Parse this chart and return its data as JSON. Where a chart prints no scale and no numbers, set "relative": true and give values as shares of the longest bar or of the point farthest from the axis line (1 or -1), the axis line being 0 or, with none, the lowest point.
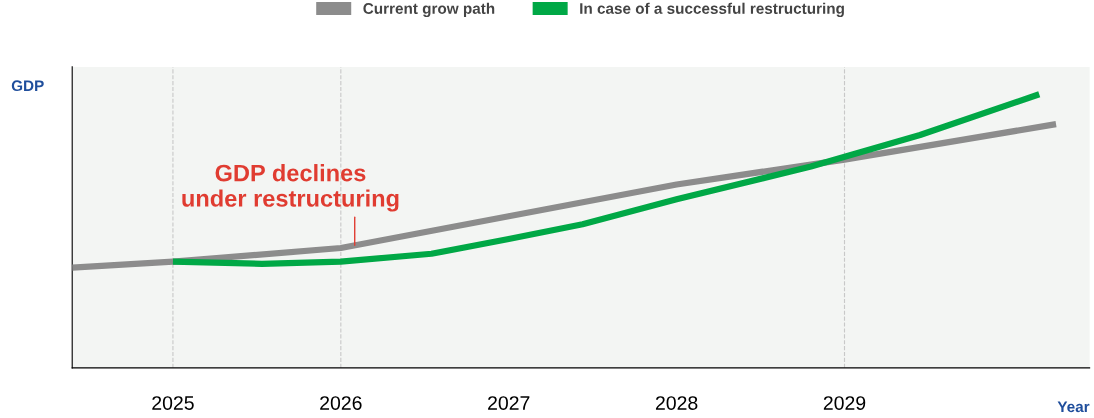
{
  "chart_data": {
    "type": "line",
    "relative": true,
    "ylabel": "GDP",
    "xlabel": "Year",
    "xlim": [
      2024.4,
      2030.46
    ],
    "xticks": [
      2025,
      2026,
      2027,
      2028,
      2029
    ],
    "series": [
      {
        "name": "Current grow path",
        "color": "#8c8c8c",
        "x": [
          2024.4,
          2025,
          2026,
          2027,
          2028,
          2028.8,
          2029,
          2030.26
        ],
        "values": [
          0.366,
          0.388,
          0.438,
          0.554,
          0.67,
          0.743,
          0.761,
          0.891
        ]
      },
      {
        "name": "In case of a successful restructuring",
        "color": "#00a846",
        "x": [
          2025,
          2025.53,
          2026,
          2026.54,
          2027,
          2027.44,
          2028,
          2028.8,
          2029.45,
          2030.16
        ],
        "values": [
          0.388,
          0.38,
          0.388,
          0.417,
          0.471,
          0.525,
          0.616,
          0.736,
          0.851,
          1.0
        ]
      }
    ],
    "ref_lines": [
      {
        "axis": "x",
        "value": 2025,
        "color": "#c8c8c8",
        "line_style": "dashed"
      },
      {
        "axis": "x",
        "value": 2026,
        "color": "#c8c8c8",
        "line_style": "dashed"
      },
      {
        "axis": "x",
        "value": 2029,
        "color": "#c8c8c8",
        "line_style": "dashed"
      }
    ],
    "annotations": [
      {
        "text": "GDP declines\nunder restructuring",
        "x": 2026,
        "y": 0.438
      }
    ],
    "legend": "top",
    "grid": false,
    "marker": "none",
    "line_style": "solid"
  }
}
